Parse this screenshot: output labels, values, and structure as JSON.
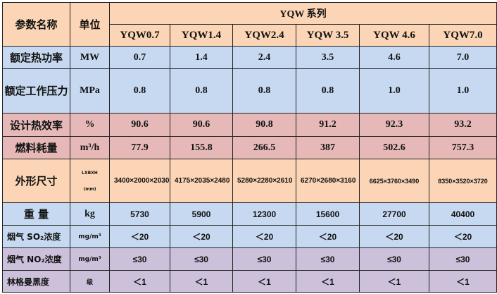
{
  "header": {
    "param": "参数名称",
    "unit": "单位",
    "series": "YQW 系列",
    "models": [
      "YQW0.7",
      "YQW1.4",
      "YQW2.4",
      "YQW 3.5",
      "YQW 4.6",
      "YQW7.0"
    ]
  },
  "rows": [
    {
      "name": "额定热功率",
      "unit": "MW",
      "values": [
        "0.7",
        "1.4",
        "2.4",
        "3.5",
        "4.6",
        "7.0"
      ]
    },
    {
      "name": "额定工作压力",
      "unit": "MPa",
      "values": [
        "0.8",
        "0.8",
        "0.8",
        "0.8",
        "1.0",
        "1.0"
      ]
    },
    {
      "name": "设计热效率",
      "unit": "%",
      "values": [
        "90.6",
        "90.6",
        "90.8",
        "91.2",
        "92.3",
        "93.2"
      ]
    },
    {
      "name": "燃料耗量",
      "unit": "m³/h",
      "values": [
        "77.9",
        "155.8",
        "266.5",
        "387",
        "502.6",
        "757.3"
      ]
    },
    {
      "name": "外形尺寸",
      "unit": "LXBXH",
      "unit2": "(mm)",
      "values": [
        "3400×2000×2030",
        "4175×2035×2480",
        "5280×2280×2610",
        "6270×2680×3160",
        "6625×3760×3490",
        "8350×3520×3720"
      ]
    },
    {
      "name": "重 量",
      "unit": "kg",
      "values": [
        "5730",
        "5900",
        "12300",
        "15600",
        "27700",
        "40400"
      ]
    },
    {
      "name": "烟气 SO₂浓度",
      "unit": "mg/m³",
      "values": [
        "＜20",
        "＜20",
        "＜20",
        "＜20",
        "＜20",
        "＜20"
      ]
    },
    {
      "name": "烟气 NO₂浓度",
      "unit": "mg/m³",
      "values": [
        "≤30",
        "≤30",
        "≤30",
        "≤30",
        "≤30",
        "≤30"
      ]
    },
    {
      "name": "林格曼黑度",
      "unit": "级",
      "values": [
        "＜1",
        "＜1",
        "＜1",
        "＜1",
        "＜1",
        "＜1"
      ]
    }
  ],
  "colors": {
    "peach": "#fbd5b5",
    "blue": "#c6d9f1",
    "pink": "#e6b9b8",
    "purple": "#ccc0da"
  }
}
